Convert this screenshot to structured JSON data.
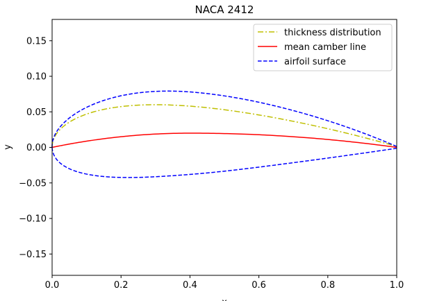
{
  "chart_data": {
    "type": "line",
    "title": "NACA 2412",
    "xlabel": "x",
    "ylabel": "y",
    "xlim": [
      0.0,
      1.0
    ],
    "ylim": [
      -0.18,
      0.18
    ],
    "xticks": [
      "0.0",
      "0.2",
      "0.4",
      "0.6",
      "0.8",
      "1.0"
    ],
    "xtick_values": [
      0.0,
      0.2,
      0.4,
      0.6,
      0.8,
      1.0
    ],
    "yticks": [
      "−0.15",
      "−0.10",
      "−0.05",
      "0.00",
      "0.05",
      "0.10",
      "0.15"
    ],
    "ytick_values": [
      -0.15,
      -0.1,
      -0.05,
      0.0,
      0.05,
      0.1,
      0.15
    ],
    "grid": false,
    "legend_position": "top-right",
    "airfoil": {
      "max_camber": 0.02,
      "camber_position": 0.4,
      "thickness": 0.12
    },
    "series": [
      {
        "name": "thickness distribution",
        "color": "#bfbf00",
        "style": "dashdot"
      },
      {
        "name": "mean camber line",
        "color": "#ff0000",
        "style": "solid"
      },
      {
        "name": "airfoil surface",
        "color": "#0000ff",
        "style": "dashed"
      }
    ]
  }
}
